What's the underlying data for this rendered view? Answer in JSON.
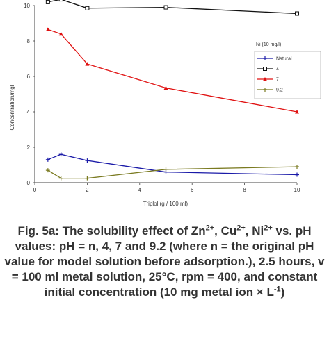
{
  "chart_data": {
    "type": "line",
    "xlabel": "Triplol (g / 100 ml)",
    "ylabel": "Concentration/mgl",
    "xlim": [
      0,
      10
    ],
    "ylim": [
      0,
      10
    ],
    "x_ticks": [
      "0",
      "2",
      "4",
      "6",
      "8",
      "10"
    ],
    "y_ticks": [
      "0",
      "2",
      "4",
      "6",
      "8",
      "10"
    ],
    "legend_title": "Ni (10 mg/l)",
    "legend_position": "right",
    "grid": false,
    "series": [
      {
        "name": "Natural",
        "color": "#1a1aa8",
        "marker": "cross",
        "x": [
          0.5,
          1,
          2,
          5,
          10
        ],
        "y": [
          1.3,
          1.6,
          1.25,
          0.6,
          0.45
        ]
      },
      {
        "name": "4",
        "color": "#111111",
        "marker": "square",
        "x": [
          0.5,
          1,
          2,
          5,
          10
        ],
        "y": [
          10.2,
          10.35,
          9.85,
          9.9,
          9.55
        ]
      },
      {
        "name": "7",
        "color": "#e01010",
        "marker": "triangle",
        "x": [
          0.5,
          1,
          2,
          5,
          10
        ],
        "y": [
          8.65,
          8.4,
          6.7,
          5.35,
          4.0
        ]
      },
      {
        "name": "9.2",
        "color": "#7a7a20",
        "marker": "cross",
        "x": [
          0.5,
          1,
          2,
          5,
          10
        ],
        "y": [
          0.7,
          0.25,
          0.25,
          0.75,
          0.9
        ]
      }
    ]
  },
  "caption": {
    "p1": "Fig. 5a: The solubility effect of Zn",
    "s1": "2+",
    "p2": ", Cu",
    "s2": "2+",
    "p3": ", Ni",
    "s3": "2+",
    "p4": " vs. pH values: pH = n, 4, 7 and 9.2 (where n = the original pH value for model solution before adsorption.), 2.5 hours, v = 100 ml metal solution, 25°C, rpm = 400, and constant initial concentration (10 mg metal ion × L",
    "s4": "-1",
    "p5": ")"
  }
}
